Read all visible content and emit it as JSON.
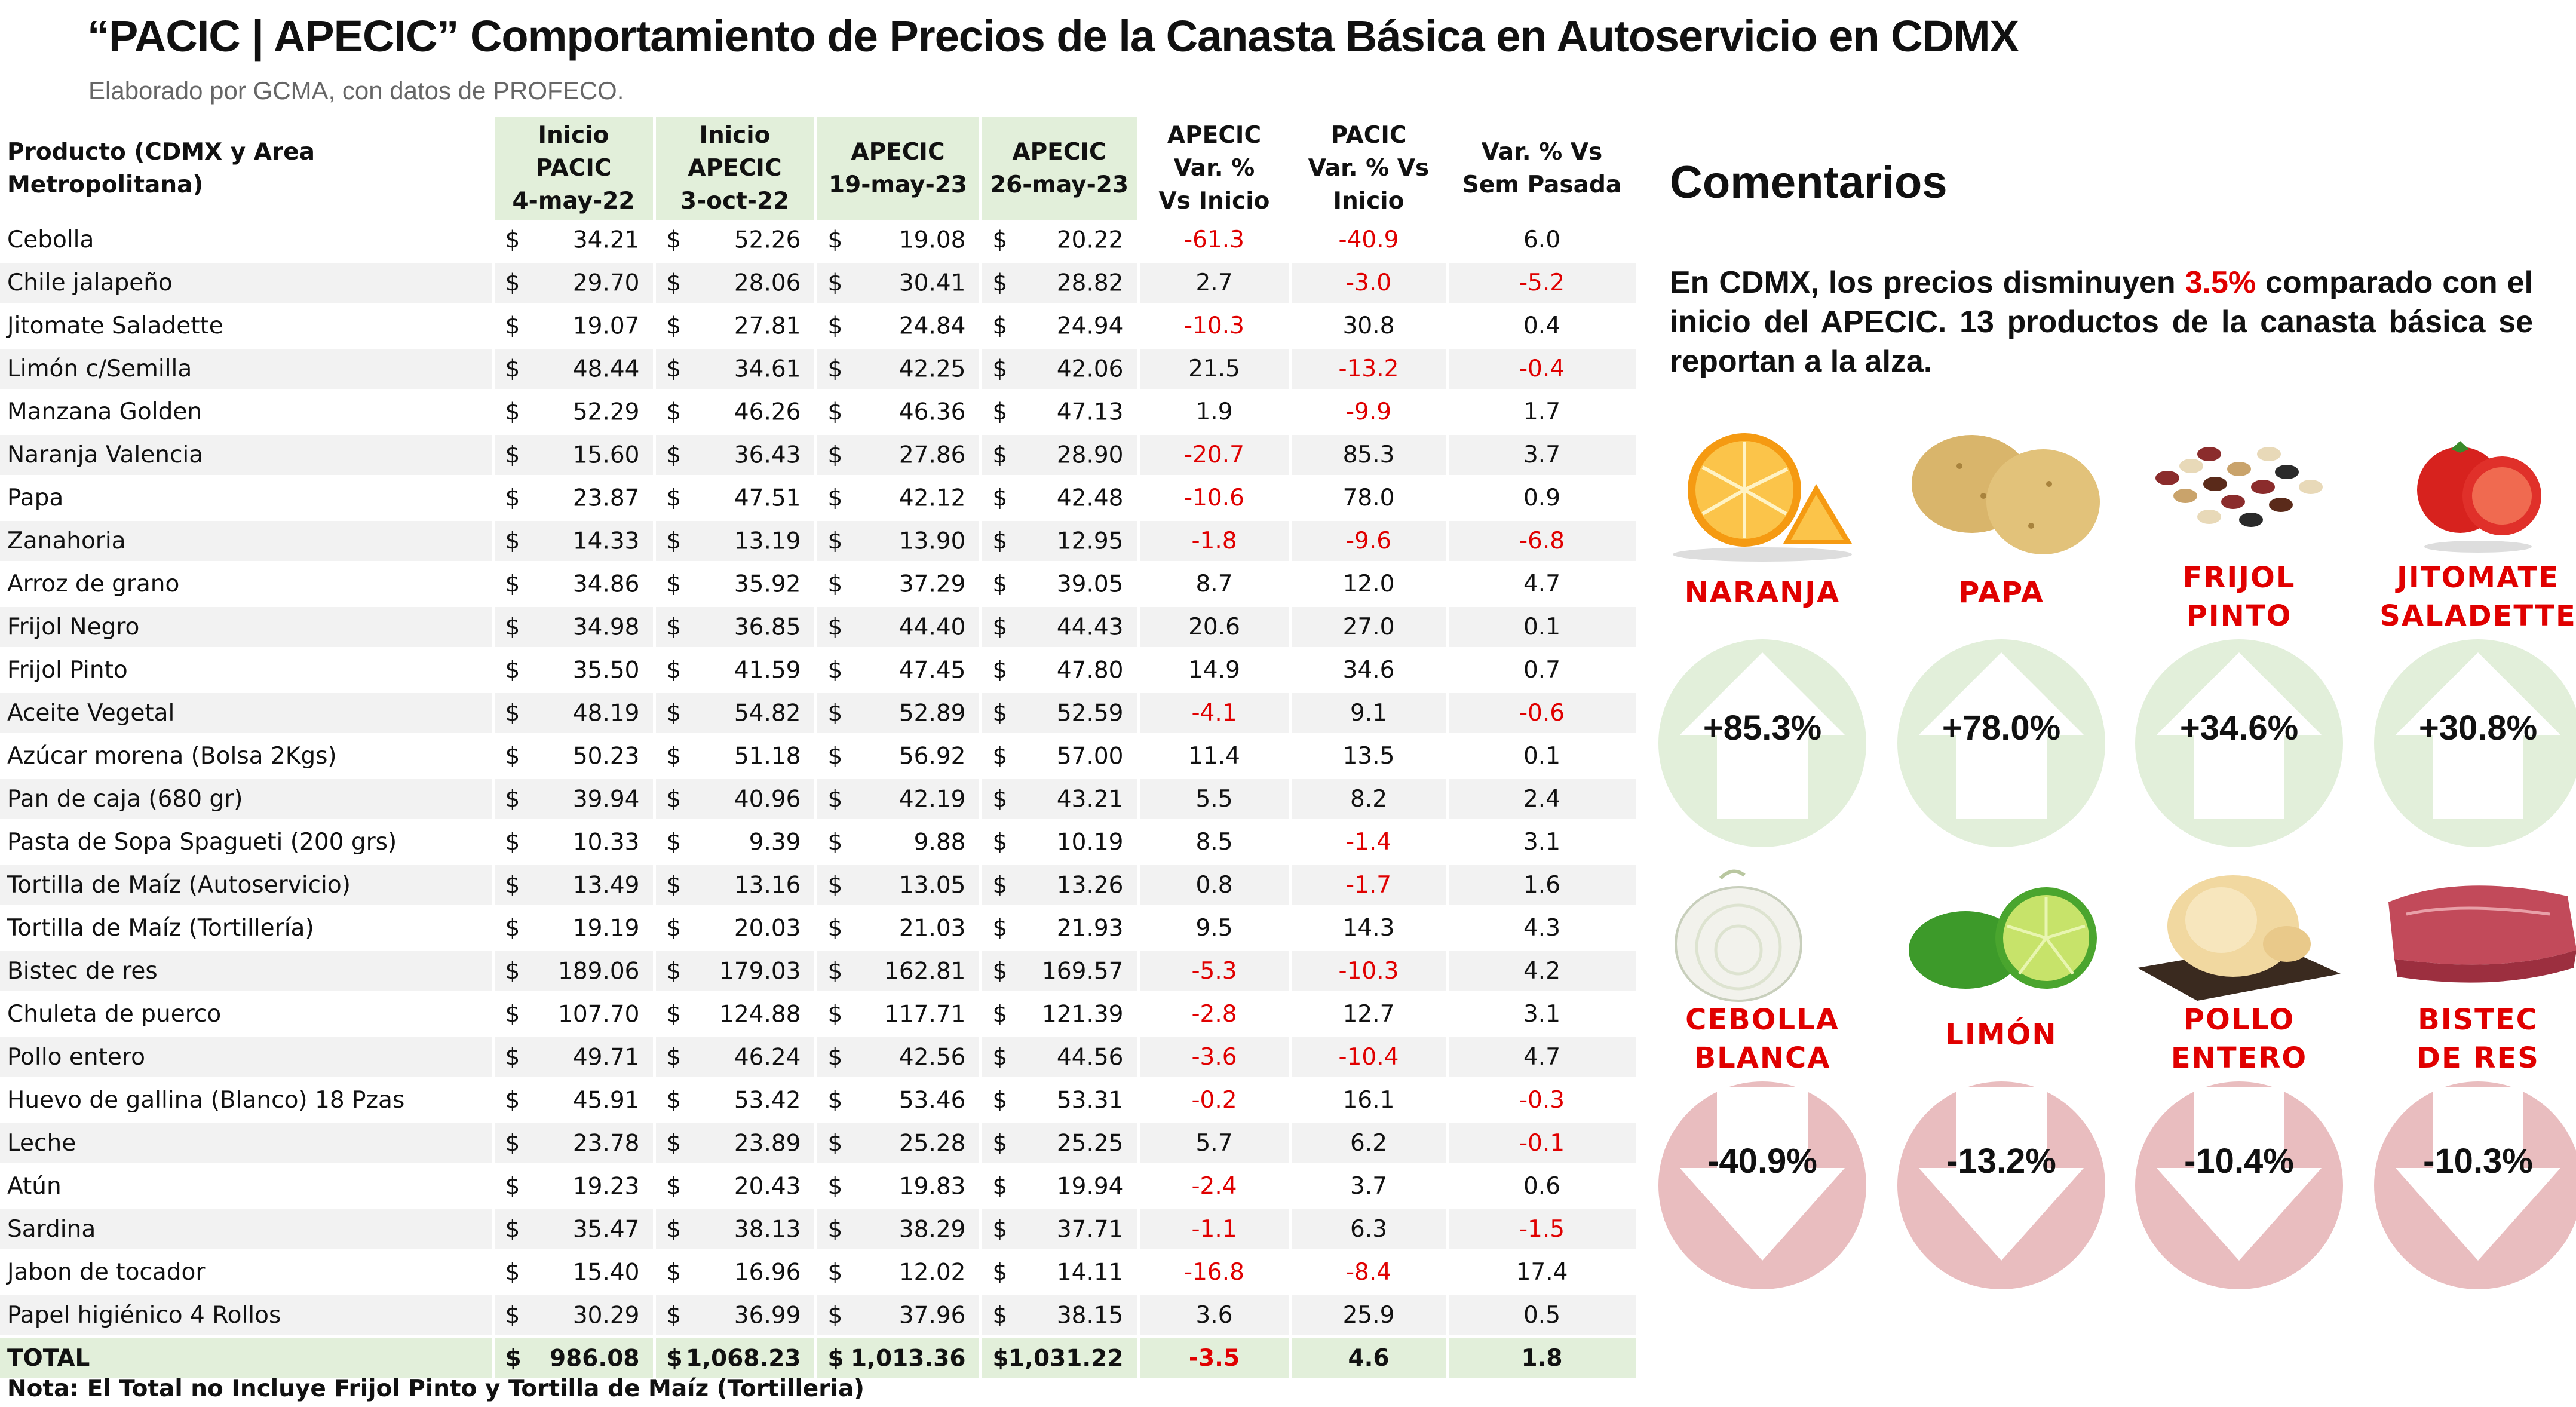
{
  "header": {
    "title": "“PACIC | APECIC” Comportamiento de Precios de la Canasta Básica en Autoservicio en CDMX",
    "subtitle": "Elaborado por GCMA, con datos de PROFECO."
  },
  "table": {
    "columns": [
      {
        "l1": "Producto (CDMX y Area Metropolitana)",
        "l2": "",
        "l3": ""
      },
      {
        "l1": "Inicio",
        "l2": "PACIC",
        "l3": "4-may-22"
      },
      {
        "l1": "Inicio",
        "l2": "APECIC",
        "l3": "3-oct-22"
      },
      {
        "l1": "APECIC",
        "l2": "19-may-23",
        "l3": ""
      },
      {
        "l1": "APECIC",
        "l2": "26-may-23",
        "l3": ""
      },
      {
        "l1": "APECIC",
        "l2": "Var. %",
        "l3": "Vs  Inicio"
      },
      {
        "l1": "PACIC",
        "l2": "Var. % Vs",
        "l3": "Inicio"
      },
      {
        "l1": "Var. % Vs",
        "l2": "Sem Pasada",
        "l3": ""
      }
    ],
    "currency": "$",
    "rows": [
      {
        "name": "Cebolla",
        "p1": "34.21",
        "p2": "52.26",
        "p3": "19.08",
        "p4": "20.22",
        "v1": "-61.3",
        "v2": "-40.9",
        "v3": "6.0"
      },
      {
        "name": "Chile jalapeño",
        "p1": "29.70",
        "p2": "28.06",
        "p3": "30.41",
        "p4": "28.82",
        "v1": "2.7",
        "v2": "-3.0",
        "v3": "-5.2"
      },
      {
        "name": "Jitomate Saladette",
        "p1": "19.07",
        "p2": "27.81",
        "p3": "24.84",
        "p4": "24.94",
        "v1": "-10.3",
        "v2": "30.8",
        "v3": "0.4"
      },
      {
        "name": "Limón c/Semilla",
        "p1": "48.44",
        "p2": "34.61",
        "p3": "42.25",
        "p4": "42.06",
        "v1": "21.5",
        "v2": "-13.2",
        "v3": "-0.4"
      },
      {
        "name": "Manzana Golden",
        "p1": "52.29",
        "p2": "46.26",
        "p3": "46.36",
        "p4": "47.13",
        "v1": "1.9",
        "v2": "-9.9",
        "v3": "1.7"
      },
      {
        "name": "Naranja Valencia",
        "p1": "15.60",
        "p2": "36.43",
        "p3": "27.86",
        "p4": "28.90",
        "v1": "-20.7",
        "v2": "85.3",
        "v3": "3.7"
      },
      {
        "name": "Papa",
        "p1": "23.87",
        "p2": "47.51",
        "p3": "42.12",
        "p4": "42.48",
        "v1": "-10.6",
        "v2": "78.0",
        "v3": "0.9"
      },
      {
        "name": "Zanahoria",
        "p1": "14.33",
        "p2": "13.19",
        "p3": "13.90",
        "p4": "12.95",
        "v1": "-1.8",
        "v2": "-9.6",
        "v3": "-6.8"
      },
      {
        "name": "Arroz de grano",
        "p1": "34.86",
        "p2": "35.92",
        "p3": "37.29",
        "p4": "39.05",
        "v1": "8.7",
        "v2": "12.0",
        "v3": "4.7"
      },
      {
        "name": "Frijol Negro",
        "p1": "34.98",
        "p2": "36.85",
        "p3": "44.40",
        "p4": "44.43",
        "v1": "20.6",
        "v2": "27.0",
        "v3": "0.1"
      },
      {
        "name": "Frijol Pinto",
        "p1": "35.50",
        "p2": "41.59",
        "p3": "47.45",
        "p4": "47.80",
        "v1": "14.9",
        "v2": "34.6",
        "v3": "0.7"
      },
      {
        "name": "Aceite Vegetal",
        "p1": "48.19",
        "p2": "54.82",
        "p3": "52.89",
        "p4": "52.59",
        "v1": "-4.1",
        "v2": "9.1",
        "v3": "-0.6"
      },
      {
        "name": "Azúcar morena (Bolsa 2Kgs)",
        "p1": "50.23",
        "p2": "51.18",
        "p3": "56.92",
        "p4": "57.00",
        "v1": "11.4",
        "v2": "13.5",
        "v3": "0.1"
      },
      {
        "name": "Pan de caja (680 gr)",
        "p1": "39.94",
        "p2": "40.96",
        "p3": "42.19",
        "p4": "43.21",
        "v1": "5.5",
        "v2": "8.2",
        "v3": "2.4"
      },
      {
        "name": "Pasta de Sopa Spagueti (200 grs)",
        "p1": "10.33",
        "p2": "9.39",
        "p3": "9.88",
        "p4": "10.19",
        "v1": "8.5",
        "v2": "-1.4",
        "v3": "3.1"
      },
      {
        "name": "Tortilla de Maíz (Autoservicio)",
        "p1": "13.49",
        "p2": "13.16",
        "p3": "13.05",
        "p4": "13.26",
        "v1": "0.8",
        "v2": "-1.7",
        "v3": "1.6"
      },
      {
        "name": "Tortilla de Maíz (Tortillería)",
        "p1": "19.19",
        "p2": "20.03",
        "p3": "21.03",
        "p4": "21.93",
        "v1": "9.5",
        "v2": "14.3",
        "v3": "4.3"
      },
      {
        "name": "Bistec de res",
        "p1": "189.06",
        "p2": "179.03",
        "p3": "162.81",
        "p4": "169.57",
        "v1": "-5.3",
        "v2": "-10.3",
        "v3": "4.2"
      },
      {
        "name": "Chuleta de puerco",
        "p1": "107.70",
        "p2": "124.88",
        "p3": "117.71",
        "p4": "121.39",
        "v1": "-2.8",
        "v2": "12.7",
        "v3": "3.1"
      },
      {
        "name": "Pollo entero",
        "p1": "49.71",
        "p2": "46.24",
        "p3": "42.56",
        "p4": "44.56",
        "v1": "-3.6",
        "v2": "-10.4",
        "v3": "4.7"
      },
      {
        "name": "Huevo de gallina (Blanco) 18 Pzas",
        "p1": "45.91",
        "p2": "53.42",
        "p3": "53.46",
        "p4": "53.31",
        "v1": "-0.2",
        "v2": "16.1",
        "v3": "-0.3"
      },
      {
        "name": "Leche",
        "p1": "23.78",
        "p2": "23.89",
        "p3": "25.28",
        "p4": "25.25",
        "v1": "5.7",
        "v2": "6.2",
        "v3": "-0.1"
      },
      {
        "name": "Atún",
        "p1": "19.23",
        "p2": "20.43",
        "p3": "19.83",
        "p4": "19.94",
        "v1": "-2.4",
        "v2": "3.7",
        "v3": "0.6"
      },
      {
        "name": "Sardina",
        "p1": "35.47",
        "p2": "38.13",
        "p3": "38.29",
        "p4": "37.71",
        "v1": "-1.1",
        "v2": "6.3",
        "v3": "-1.5"
      },
      {
        "name": "Jabon de tocador",
        "p1": "15.40",
        "p2": "16.96",
        "p3": "12.02",
        "p4": "14.11",
        "v1": "-16.8",
        "v2": "-8.4",
        "v3": "17.4"
      },
      {
        "name": "Papel higiénico 4 Rollos",
        "p1": "30.29",
        "p2": "36.99",
        "p3": "37.96",
        "p4": "38.15",
        "v1": "3.6",
        "v2": "25.9",
        "v3": "0.5"
      }
    ],
    "total": {
      "name": "TOTAL",
      "p1": "986.08",
      "p2": "1,068.23",
      "p3": "1,013.36",
      "p4": "1,031.22",
      "v1": "-3.5",
      "v2": "4.6",
      "v3": "1.8"
    },
    "note": "Nota: El Total no Incluye Frijol Pinto y Tortilla de Maíz (Tortilleria)"
  },
  "comments": {
    "title": "Comentarios",
    "text_a": "En CDMX, los precios disminuyen ",
    "highlight": "3.5%",
    "text_b": " comparado con el inicio del APECIC. 13 productos de la canasta básica se reportan a la alza."
  },
  "cards_up": [
    {
      "l1": "NARANJA",
      "l2": "",
      "value": "+85.3%",
      "icon": "orange-icon"
    },
    {
      "l1": "PAPA",
      "l2": "",
      "value": "+78.0%",
      "icon": "potato-icon"
    },
    {
      "l1": "FRIJOL",
      "l2": "PINTO",
      "value": "+34.6%",
      "icon": "beans-icon"
    },
    {
      "l1": "JITOMATE",
      "l2": "SALADETTE",
      "value": "+30.8%",
      "icon": "tomato-icon"
    }
  ],
  "cards_down": [
    {
      "l1": "CEBOLLA",
      "l2": "BLANCA",
      "value": "-40.9%",
      "icon": "onion-icon"
    },
    {
      "l1": "LIMÓN",
      "l2": "",
      "value": "-13.2%",
      "icon": "lime-icon"
    },
    {
      "l1": "POLLO",
      "l2": "ENTERO",
      "value": "-10.4%",
      "icon": "chicken-icon"
    },
    {
      "l1": "BISTEC",
      "l2": "DE RES",
      "value": "-10.3%",
      "icon": "beef-icon"
    }
  ],
  "colors": {
    "up": "#e2efda",
    "up_arrow": "#ffffff",
    "down": "#e9bdbf",
    "negative": "#e00000",
    "header_green": "#e2efda"
  }
}
